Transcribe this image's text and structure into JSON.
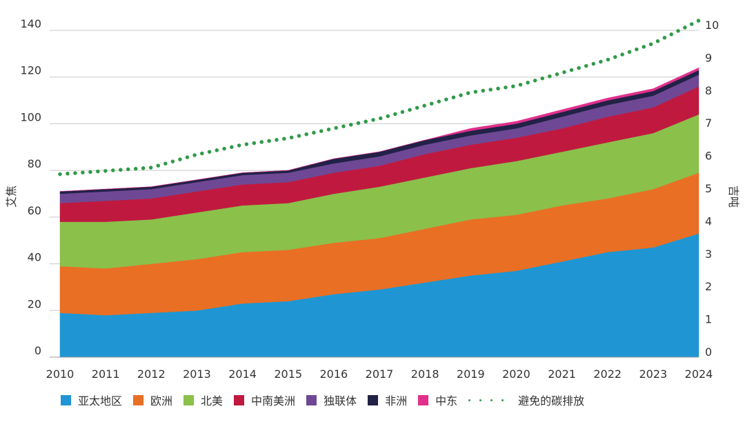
{
  "chart_data": {
    "type": "area",
    "stacked": true,
    "x": [
      "2010",
      "2011",
      "2012",
      "2013",
      "2014",
      "2015",
      "2016",
      "2017",
      "2018",
      "2019",
      "2020",
      "2021",
      "2022",
      "2023",
      "2024"
    ],
    "ylabel": "艾焦",
    "ylabel_right": "吉吨",
    "ylim": [
      0,
      140
    ],
    "yticks": [
      0,
      20,
      40,
      60,
      80,
      100,
      120,
      140
    ],
    "ylim_right": [
      0,
      10
    ],
    "yticks_right": [
      0,
      1,
      2,
      3,
      4,
      5,
      6,
      7,
      8,
      9,
      10
    ],
    "grid": true,
    "legend_position": "bottom",
    "series": [
      {
        "name": "亚太地区",
        "color": "#1f96d3",
        "values": [
          19,
          18,
          19,
          20,
          23,
          24,
          27,
          29,
          32,
          35,
          37,
          41,
          45,
          47,
          53
        ]
      },
      {
        "name": "欧洲",
        "color": "#e96f24",
        "values": [
          20,
          20,
          21,
          22,
          22,
          22,
          22,
          22,
          23,
          24,
          24,
          24,
          23,
          25,
          26
        ]
      },
      {
        "name": "北美",
        "color": "#8bc04b",
        "values": [
          19,
          20,
          19,
          20,
          20,
          20,
          21,
          22,
          22,
          22,
          23,
          23,
          24,
          24,
          25
        ]
      },
      {
        "name": "中南美洲",
        "color": "#c0193f",
        "values": [
          8,
          9,
          9,
          9,
          9,
          9,
          9,
          9,
          10,
          10,
          10,
          10,
          11,
          11,
          12
        ]
      },
      {
        "name": "独联体",
        "color": "#6f4895",
        "values": [
          4,
          4,
          4,
          4,
          4,
          4,
          4,
          4,
          4,
          4,
          4,
          5,
          5,
          5,
          5
        ]
      },
      {
        "name": "非洲",
        "color": "#222147",
        "values": [
          1,
          1,
          1,
          1,
          1,
          1,
          2,
          2,
          2,
          2,
          2,
          2,
          2,
          2,
          2
        ]
      },
      {
        "name": "中东",
        "color": "#e0308b",
        "values": [
          0,
          0,
          0,
          0,
          0,
          0,
          0,
          0,
          0,
          1,
          1,
          1,
          1,
          1,
          1
        ]
      }
    ],
    "line_series": {
      "name": "避免的碳排放",
      "color": "#2e9a48",
      "style": "dotted",
      "axis": "right",
      "values": [
        5.6,
        5.7,
        5.8,
        6.2,
        6.5,
        6.7,
        7.0,
        7.3,
        7.7,
        8.1,
        8.3,
        8.7,
        9.1,
        9.6,
        10.3
      ]
    }
  }
}
